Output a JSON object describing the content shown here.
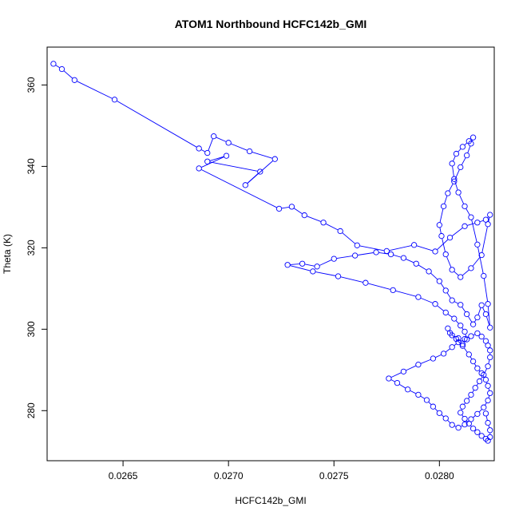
{
  "chart_data": {
    "type": "line",
    "title": "ATOM1 Northbound HCFC142b_GMI",
    "xlabel": "HCFC142b_GMI",
    "ylabel": "Theta (K)",
    "xlim": [
      0.02614,
      0.02826
    ],
    "ylim": [
      267.7,
      369.3
    ],
    "x_ticks": [
      0.0265,
      0.027,
      0.0275,
      0.028
    ],
    "x_tick_labels": [
      "0.0265",
      "0.0270",
      "0.0275",
      "0.0280"
    ],
    "y_ticks": [
      280,
      300,
      320,
      340,
      360
    ],
    "y_tick_labels": [
      "280",
      "300",
      "320",
      "340",
      "360"
    ],
    "series_color": "#0000ff",
    "markers": "open-circle",
    "series": [
      {
        "x": [
          0.02617,
          0.02621,
          0.02627,
          0.02646,
          0.02686,
          0.0269,
          0.02693,
          0.027,
          0.0271,
          0.02722,
          0.02708,
          0.02715,
          0.0269,
          0.02699,
          0.02686,
          0.02724,
          0.0273,
          0.02736,
          0.02745,
          0.02753,
          0.02761,
          0.02775,
          0.02788,
          0.02798,
          0.02805,
          0.02812,
          0.02818,
          0.02822,
          0.02824,
          0.02823,
          0.0282,
          0.02815,
          0.0281,
          0.02806,
          0.02803,
          0.02801,
          0.028,
          0.02802,
          0.02804,
          0.02807,
          0.0281,
          0.02813,
          0.02815,
          0.02816,
          0.02814,
          0.02811,
          0.02808,
          0.02806,
          0.02807,
          0.02809,
          0.02812,
          0.02815,
          0.02818,
          0.02821,
          0.02823,
          0.02824,
          0.02822,
          0.0282,
          0.02818,
          0.02816,
          0.02813,
          0.0281,
          0.02806,
          0.02803,
          0.028,
          0.02795,
          0.02789,
          0.02783,
          0.02777,
          0.0277,
          0.0276,
          0.0275,
          0.02742,
          0.02735,
          0.02728,
          0.0274,
          0.02752,
          0.02765,
          0.02778,
          0.0279,
          0.02798,
          0.02803,
          0.02807,
          0.0281,
          0.02812,
          0.02813,
          0.02811,
          0.02809,
          0.02806,
          0.02804,
          0.02805,
          0.02808,
          0.02811,
          0.02814,
          0.02816,
          0.02818,
          0.0282,
          0.02822,
          0.02823,
          0.02824,
          0.02823,
          0.02821,
          0.02818,
          0.02815,
          0.02812,
          0.02809,
          0.02806,
          0.02803,
          0.028,
          0.02797,
          0.02794,
          0.0279,
          0.02785,
          0.0278,
          0.02776,
          0.02783,
          0.0279,
          0.02797,
          0.02802,
          0.02806,
          0.02809,
          0.02812,
          0.02815,
          0.02818,
          0.0282,
          0.02822,
          0.02823,
          0.02824,
          0.02824,
          0.02823,
          0.02821,
          0.02819,
          0.02817,
          0.02815,
          0.02813,
          0.02811,
          0.0281,
          0.02812,
          0.02814,
          0.02816,
          0.02818,
          0.0282,
          0.02822,
          0.02823,
          0.02824,
          0.02824,
          0.02823,
          0.02822
        ],
        "y": [
          365.2,
          363.9,
          361.2,
          356.4,
          344.4,
          343.3,
          347.4,
          345.8,
          343.7,
          341.8,
          335.4,
          338.7,
          341.2,
          342.6,
          339.5,
          329.6,
          330.1,
          328.0,
          326.2,
          324.1,
          320.6,
          319.2,
          320.7,
          319.1,
          322.5,
          325.3,
          326.2,
          326.9,
          328.1,
          325.8,
          318.2,
          315.0,
          312.8,
          314.6,
          318.4,
          322.9,
          325.6,
          330.2,
          333.4,
          336.3,
          339.8,
          342.7,
          345.6,
          347.1,
          346.2,
          344.8,
          343.1,
          340.7,
          336.9,
          333.6,
          330.2,
          327.5,
          320.8,
          313.1,
          306.2,
          300.4,
          303.7,
          305.9,
          302.9,
          301.2,
          303.7,
          306.0,
          307.1,
          309.5,
          311.8,
          314.2,
          316.1,
          317.5,
          318.4,
          318.9,
          318.1,
          317.3,
          315.4,
          316.1,
          315.8,
          314.2,
          313.0,
          311.4,
          309.6,
          307.9,
          306.2,
          304.1,
          302.6,
          300.9,
          299.4,
          297.5,
          296.3,
          297.8,
          298.5,
          300.2,
          299.1,
          297.6,
          295.9,
          293.8,
          292.1,
          290.4,
          289.2,
          287.6,
          286.1,
          284.3,
          282.5,
          280.8,
          279.2,
          277.9,
          276.6,
          275.8,
          276.5,
          278.1,
          279.4,
          281.0,
          282.6,
          283.9,
          285.2,
          286.8,
          287.9,
          289.6,
          291.3,
          292.8,
          294.0,
          295.6,
          296.8,
          297.6,
          298.3,
          299.0,
          298.2,
          297.1,
          296.0,
          294.8,
          293.1,
          290.9,
          288.8,
          287.2,
          285.6,
          283.9,
          282.4,
          281.0,
          279.5,
          278.0,
          276.8,
          275.6,
          274.7,
          273.8,
          273.1,
          272.6,
          273.5,
          275.2,
          277.0,
          279.3
        ]
      }
    ],
    "grid": false,
    "legend": "none"
  }
}
